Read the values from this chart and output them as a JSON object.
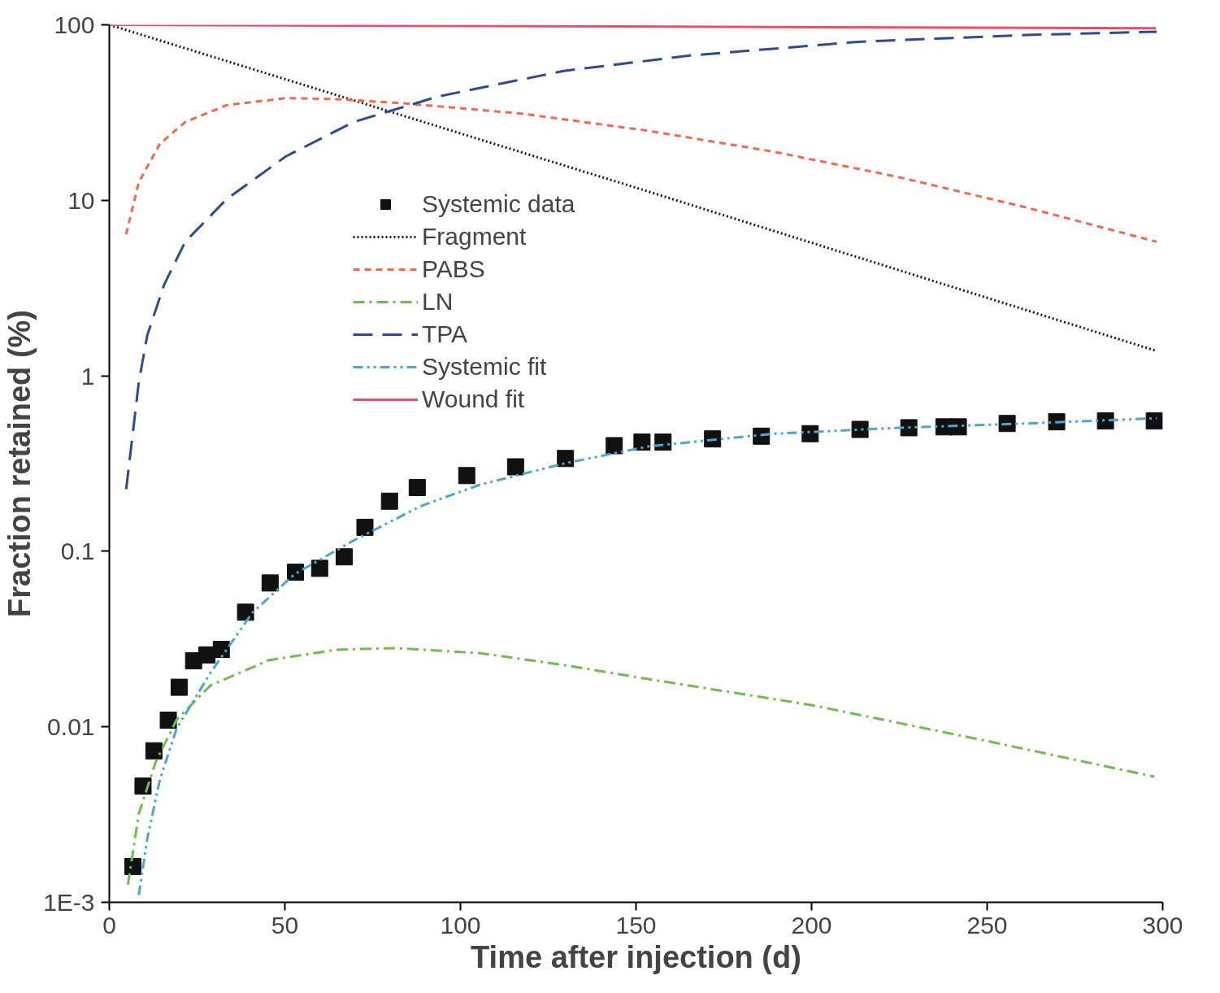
{
  "chart_data": {
    "type": "line",
    "xlabel": "Time after injection (d)",
    "ylabel": "Fraction retained (%)",
    "log": "y",
    "xlim": [
      0,
      300
    ],
    "ylim": [
      0.001,
      100
    ],
    "xticks": [
      0,
      50,
      100,
      150,
      200,
      250,
      300
    ],
    "yticks": [
      {
        "value": 0.001,
        "label": "1E-3"
      },
      {
        "value": 0.01,
        "label": "0.01"
      },
      {
        "value": 0.1,
        "label": "0.1"
      },
      {
        "value": 1,
        "label": "1"
      },
      {
        "value": 10,
        "label": "10"
      },
      {
        "value": 100,
        "label": "100"
      }
    ],
    "grid": false,
    "legend": "top left",
    "series": [
      {
        "name": "Systemic data",
        "type": "scatter",
        "marker": "square",
        "color": "#111111",
        "x": [
          6.7,
          9.6,
          12.7,
          16.8,
          19.9,
          24.0,
          27.8,
          31.9,
          38.8,
          45.8,
          53.0,
          59.9,
          66.9,
          72.8,
          79.8,
          87.7,
          101.8,
          115.7,
          129.9,
          143.8,
          151.7,
          157.7,
          171.8,
          185.7,
          199.6,
          213.8,
          227.7,
          237.7,
          241.8,
          255.7,
          269.8,
          283.7,
          297.6
        ],
        "values": [
          0.0016,
          0.0046,
          0.0073,
          0.0109,
          0.0168,
          0.0238,
          0.0257,
          0.0276,
          0.045,
          0.066,
          0.076,
          0.08,
          0.093,
          0.137,
          0.193,
          0.231,
          0.27,
          0.303,
          0.338,
          0.4,
          0.419,
          0.419,
          0.437,
          0.453,
          0.468,
          0.495,
          0.506,
          0.512,
          0.512,
          0.535,
          0.547,
          0.553,
          0.553
        ]
      },
      {
        "name": "Fragment",
        "line_style": "dotted",
        "color": "#1a1a1a",
        "x": [
          0,
          150,
          298
        ],
        "values": [
          100,
          11.8,
          1.39
        ]
      },
      {
        "name": "PABS",
        "line_style": "dashed",
        "color": "#f26a4a",
        "x": [
          4.8,
          8.4,
          14.4,
          21.6,
          33.5,
          50.3,
          64.7,
          83.9,
          117.4,
          153.4,
          189.3,
          225.3,
          261.2,
          298.3
        ],
        "values": [
          6.4,
          12.7,
          21,
          27.9,
          34.9,
          38.2,
          37.7,
          35.7,
          31.2,
          24.9,
          18.9,
          13.5,
          9.1,
          5.8
        ]
      },
      {
        "name": "LN",
        "line_style": "dashdot",
        "color": "#6cbf4a",
        "x": [
          5.3,
          8.4,
          13.2,
          19.2,
          28.8,
          45.5,
          64.7,
          81.5,
          105.4,
          129.4,
          150,
          200,
          250,
          297.6
        ],
        "values": [
          0.00126,
          0.0032,
          0.0063,
          0.011,
          0.0172,
          0.024,
          0.0275,
          0.0281,
          0.0263,
          0.0225,
          0.0192,
          0.0133,
          0.0083,
          0.0052
        ]
      },
      {
        "name": "TPA",
        "line_style": "longdash",
        "color": "#2a4a9a",
        "x": [
          4.8,
          8.4,
          10.8,
          15.6,
          21.6,
          33.5,
          50.3,
          69.5,
          93.5,
          129.4,
          165.3,
          213.3,
          261.2,
          298.3
        ],
        "values": [
          0.226,
          0.92,
          1.7,
          3.3,
          5.8,
          10.2,
          17.8,
          27.9,
          39,
          54.6,
          66.8,
          80,
          87.5,
          91.4
        ]
      },
      {
        "name": "Systemic fit",
        "line_style": "dashdotdot",
        "color": "#4aa6d6",
        "x": [
          8.4,
          10.8,
          14.4,
          19.2,
          28.8,
          40.7,
          52.7,
          69.5,
          88.7,
          105.4,
          129.4,
          153.4,
          189.3,
          225.3,
          261.2,
          298.3
        ],
        "values": [
          0.0011,
          0.0023,
          0.005,
          0.0098,
          0.0203,
          0.0446,
          0.074,
          0.115,
          0.181,
          0.239,
          0.316,
          0.396,
          0.468,
          0.506,
          0.535,
          0.573
        ]
      },
      {
        "name": "Wound fit",
        "line_style": "solid",
        "color": "#e8506a",
        "x": [
          0,
          298
        ],
        "values": [
          100,
          95.6
        ]
      }
    ]
  }
}
